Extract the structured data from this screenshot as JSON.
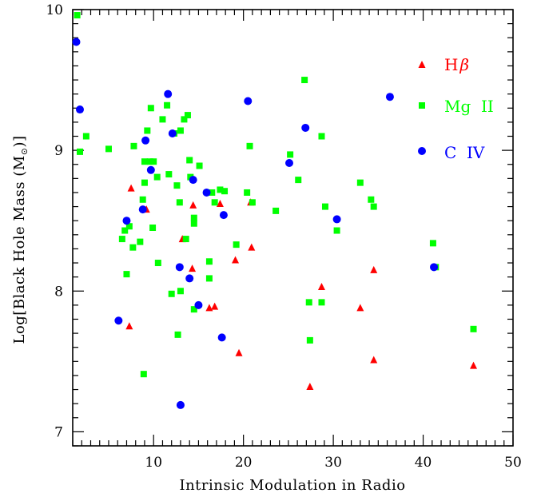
{
  "chart_data": {
    "type": "scatter",
    "xlabel": "Intrinsic Modulation in Radio",
    "ylabel_prefix": "Log[Black Hole Mass (M",
    "ylabel_sun": "⊙",
    "ylabel_suffix": ")]",
    "xlim": [
      1,
      50
    ],
    "ylim": [
      6.9,
      10
    ],
    "x_ticks": [
      10,
      20,
      30,
      40,
      50
    ],
    "y_ticks": [
      7,
      8,
      9,
      10
    ],
    "grid": false,
    "legend_position": "top-right",
    "series": [
      {
        "name": "Hβ",
        "label_main": "H",
        "label_greek": "β",
        "color": "#ff0000",
        "marker": "triangle",
        "points": [
          [
            7.5,
            8.73
          ],
          [
            9.2,
            8.58
          ],
          [
            7.3,
            7.75
          ],
          [
            13.2,
            8.37
          ],
          [
            14.3,
            8.16
          ],
          [
            14.4,
            8.61
          ],
          [
            16.8,
            7.89
          ],
          [
            16.2,
            7.88
          ],
          [
            17.4,
            8.62
          ],
          [
            20.8,
            8.63
          ],
          [
            20.9,
            8.31
          ],
          [
            19.1,
            8.22
          ],
          [
            19.5,
            7.56
          ],
          [
            28.7,
            8.03
          ],
          [
            27.4,
            7.32
          ],
          [
            33.0,
            7.88
          ],
          [
            34.5,
            8.15
          ],
          [
            34.5,
            7.51
          ],
          [
            45.6,
            7.47
          ]
        ]
      },
      {
        "name": "Mg II",
        "label_main": "Mg  II",
        "color": "#00ff00",
        "marker": "square",
        "points": [
          [
            1.5,
            9.96
          ],
          [
            1.8,
            8.99
          ],
          [
            2.5,
            9.1
          ],
          [
            5.0,
            9.01
          ],
          [
            6.5,
            8.37
          ],
          [
            6.8,
            8.43
          ],
          [
            7.0,
            8.12
          ],
          [
            7.3,
            8.46
          ],
          [
            7.7,
            8.31
          ],
          [
            7.8,
            9.03
          ],
          [
            8.5,
            8.35
          ],
          [
            8.8,
            8.65
          ],
          [
            9.0,
            8.92
          ],
          [
            9.0,
            8.77
          ],
          [
            9.3,
            9.14
          ],
          [
            9.6,
            8.92
          ],
          [
            9.7,
            9.3
          ],
          [
            9.9,
            8.45
          ],
          [
            10.0,
            8.92
          ],
          [
            10.4,
            8.81
          ],
          [
            10.5,
            8.2
          ],
          [
            11.0,
            9.22
          ],
          [
            11.5,
            9.32
          ],
          [
            11.7,
            8.83
          ],
          [
            12.0,
            7.98
          ],
          [
            12.3,
            9.12
          ],
          [
            12.6,
            8.75
          ],
          [
            12.7,
            7.69
          ],
          [
            12.9,
            8.63
          ],
          [
            13.0,
            9.14
          ],
          [
            13.0,
            8.0
          ],
          [
            13.4,
            9.22
          ],
          [
            13.6,
            8.37
          ],
          [
            13.8,
            9.25
          ],
          [
            14.0,
            8.93
          ],
          [
            14.1,
            8.81
          ],
          [
            14.5,
            8.52
          ],
          [
            14.5,
            8.48
          ],
          [
            14.5,
            7.87
          ],
          [
            15.1,
            8.89
          ],
          [
            16.2,
            8.21
          ],
          [
            16.2,
            8.09
          ],
          [
            16.5,
            8.7
          ],
          [
            16.8,
            8.63
          ],
          [
            17.4,
            8.72
          ],
          [
            17.9,
            8.71
          ],
          [
            19.2,
            8.33
          ],
          [
            20.4,
            8.7
          ],
          [
            20.7,
            9.03
          ],
          [
            21.0,
            8.63
          ],
          [
            23.6,
            8.57
          ],
          [
            25.2,
            8.97
          ],
          [
            26.1,
            8.79
          ],
          [
            26.8,
            9.5
          ],
          [
            27.3,
            7.92
          ],
          [
            27.4,
            7.65
          ],
          [
            28.7,
            9.1
          ],
          [
            28.7,
            7.92
          ],
          [
            29.1,
            8.6
          ],
          [
            30.4,
            8.43
          ],
          [
            33.0,
            8.77
          ],
          [
            34.2,
            8.65
          ],
          [
            34.5,
            8.6
          ],
          [
            8.9,
            7.41
          ],
          [
            41.1,
            8.34
          ],
          [
            41.4,
            8.17
          ],
          [
            45.6,
            7.73
          ]
        ]
      },
      {
        "name": "C IV",
        "label_main": "C  IV",
        "color": "#0000ff",
        "marker": "circle",
        "points": [
          [
            1.4,
            9.77
          ],
          [
            1.8,
            9.29
          ],
          [
            6.1,
            7.79
          ],
          [
            7.0,
            8.5
          ],
          [
            8.8,
            8.58
          ],
          [
            9.1,
            9.07
          ],
          [
            9.7,
            8.86
          ],
          [
            11.6,
            9.4
          ],
          [
            12.1,
            9.12
          ],
          [
            12.9,
            8.17
          ],
          [
            13.0,
            7.19
          ],
          [
            14.0,
            8.09
          ],
          [
            14.4,
            8.79
          ],
          [
            15.0,
            7.9
          ],
          [
            15.9,
            8.7
          ],
          [
            17.6,
            7.67
          ],
          [
            17.8,
            8.54
          ],
          [
            20.5,
            9.35
          ],
          [
            25.1,
            8.91
          ],
          [
            26.9,
            9.16
          ],
          [
            30.4,
            8.51
          ],
          [
            36.3,
            9.38
          ],
          [
            41.2,
            8.17
          ]
        ]
      }
    ]
  }
}
